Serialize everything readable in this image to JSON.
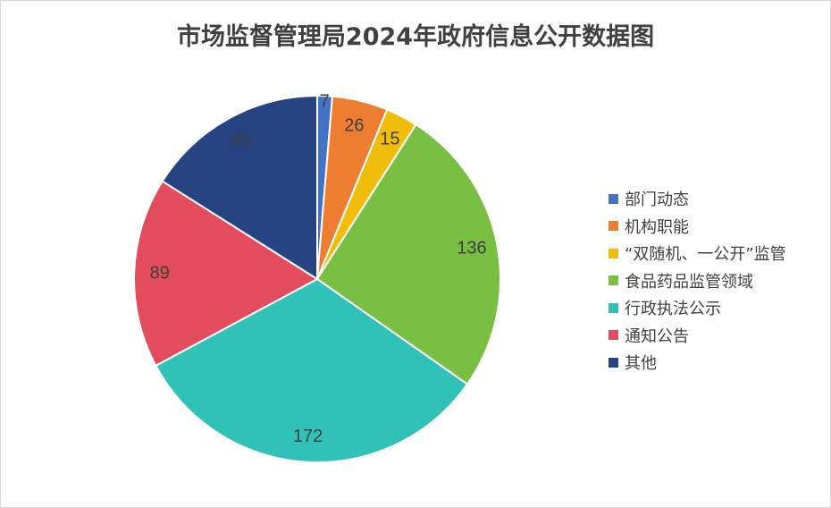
{
  "chart_data": {
    "type": "pie",
    "title": "市场监督管理局2024年政府信息公开数据图",
    "categories": [
      "部门动态",
      "机构职能",
      "“双随机、一公开”监管",
      "食品药品监管领域",
      "行政执法公示",
      "通知公告",
      "其他"
    ],
    "values": [
      7,
      26,
      15,
      136,
      172,
      89,
      85
    ],
    "colors": [
      "#4472c4",
      "#ed7d31",
      "#f0bd0a",
      "#78bf44",
      "#30c2b6",
      "#e24c5d",
      "#254481"
    ],
    "data_labels": true,
    "legend_position": "right"
  }
}
